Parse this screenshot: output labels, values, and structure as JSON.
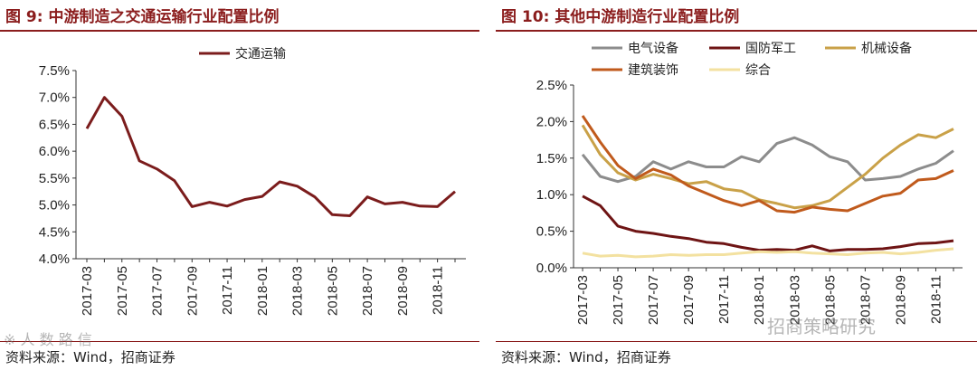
{
  "left": {
    "fig_label": "图 9:",
    "title": "中游制造之交通运输行业配置比例",
    "source": "资料来源：Wind，招商证券"
  },
  "right": {
    "fig_label": "图 10:",
    "title": "其他中游制造行业配置比例",
    "source": "资料来源：Wind，招商证券"
  },
  "watermark": {
    "left_text": "※ 人 数 路 信",
    "right_text": "招商策略研究"
  },
  "chart_data": [
    {
      "type": "line",
      "title": "",
      "xlabel": "",
      "ylabel": "",
      "x": [
        "2017-03",
        "2017-04",
        "2017-05",
        "2017-06",
        "2017-07",
        "2017-08",
        "2017-09",
        "2017-10",
        "2017-11",
        "2017-12",
        "2018-01",
        "2018-02",
        "2018-03",
        "2018-04",
        "2018-05",
        "2018-06",
        "2018-07",
        "2018-08",
        "2018-09",
        "2018-10",
        "2018-11",
        "2018-12"
      ],
      "xticks": [
        "2017-03",
        "2017-05",
        "2017-07",
        "2017-09",
        "2017-11",
        "2018-01",
        "2018-03",
        "2018-05",
        "2018-07",
        "2018-09",
        "2018-11"
      ],
      "ylim": [
        4.0,
        7.5
      ],
      "yticks": [
        "4.0%",
        "4.5%",
        "5.0%",
        "5.5%",
        "6.0%",
        "6.5%",
        "7.0%",
        "7.5%"
      ],
      "ytick_values": [
        4.0,
        4.5,
        5.0,
        5.5,
        6.0,
        6.5,
        7.0,
        7.5
      ],
      "grid": false,
      "legend_position": "top-center",
      "series": [
        {
          "name": "交通运输",
          "color": "#7b1c1c",
          "values": [
            6.42,
            7.0,
            6.65,
            5.82,
            5.67,
            5.45,
            4.97,
            5.05,
            4.98,
            5.1,
            5.16,
            5.43,
            5.35,
            5.15,
            4.82,
            4.8,
            5.15,
            5.02,
            5.05,
            4.98,
            4.97,
            5.25
          ]
        }
      ]
    },
    {
      "type": "line",
      "title": "",
      "xlabel": "",
      "ylabel": "",
      "x": [
        "2017-03",
        "2017-04",
        "2017-05",
        "2017-06",
        "2017-07",
        "2017-08",
        "2017-09",
        "2017-10",
        "2017-11",
        "2017-12",
        "2018-01",
        "2018-02",
        "2018-03",
        "2018-04",
        "2018-05",
        "2018-06",
        "2018-07",
        "2018-08",
        "2018-09",
        "2018-10",
        "2018-11",
        "2018-12"
      ],
      "xticks": [
        "2017-03",
        "2017-05",
        "2017-07",
        "2017-09",
        "2017-11",
        "2018-01",
        "2018-03",
        "2018-05",
        "2018-07",
        "2018-09",
        "2018-11"
      ],
      "ylim": [
        0.0,
        2.5
      ],
      "yticks": [
        "0.0%",
        "0.5%",
        "1.0%",
        "1.5%",
        "2.0%",
        "2.5%"
      ],
      "ytick_values": [
        0.0,
        0.5,
        1.0,
        1.5,
        2.0,
        2.5
      ],
      "grid": false,
      "legend_position": "top",
      "series": [
        {
          "name": "电气设备",
          "color": "#8c8c8c",
          "values": [
            1.55,
            1.25,
            1.18,
            1.25,
            1.45,
            1.35,
            1.45,
            1.38,
            1.38,
            1.52,
            1.45,
            1.7,
            1.78,
            1.68,
            1.52,
            1.45,
            1.2,
            1.22,
            1.25,
            1.35,
            1.43,
            1.6
          ]
        },
        {
          "name": "国防军工",
          "color": "#6e1414",
          "values": [
            0.98,
            0.85,
            0.57,
            0.5,
            0.47,
            0.43,
            0.4,
            0.35,
            0.33,
            0.28,
            0.24,
            0.25,
            0.24,
            0.3,
            0.23,
            0.25,
            0.25,
            0.26,
            0.29,
            0.33,
            0.34,
            0.37
          ]
        },
        {
          "name": "机械设备",
          "color": "#c9a148",
          "values": [
            1.95,
            1.55,
            1.3,
            1.2,
            1.28,
            1.22,
            1.15,
            1.18,
            1.08,
            1.05,
            0.93,
            0.88,
            0.82,
            0.85,
            0.92,
            1.1,
            1.28,
            1.5,
            1.68,
            1.82,
            1.78,
            1.9
          ]
        },
        {
          "name": "建筑装饰",
          "color": "#c05a1c",
          "values": [
            2.08,
            1.72,
            1.4,
            1.22,
            1.35,
            1.27,
            1.12,
            1.02,
            0.92,
            0.85,
            0.92,
            0.78,
            0.76,
            0.83,
            0.8,
            0.78,
            0.88,
            0.98,
            1.02,
            1.2,
            1.22,
            1.33
          ]
        },
        {
          "name": "综合",
          "color": "#f3e1a0",
          "values": [
            0.2,
            0.16,
            0.17,
            0.15,
            0.16,
            0.18,
            0.17,
            0.18,
            0.18,
            0.2,
            0.22,
            0.21,
            0.22,
            0.2,
            0.19,
            0.18,
            0.2,
            0.21,
            0.19,
            0.21,
            0.24,
            0.26
          ]
        }
      ]
    }
  ]
}
